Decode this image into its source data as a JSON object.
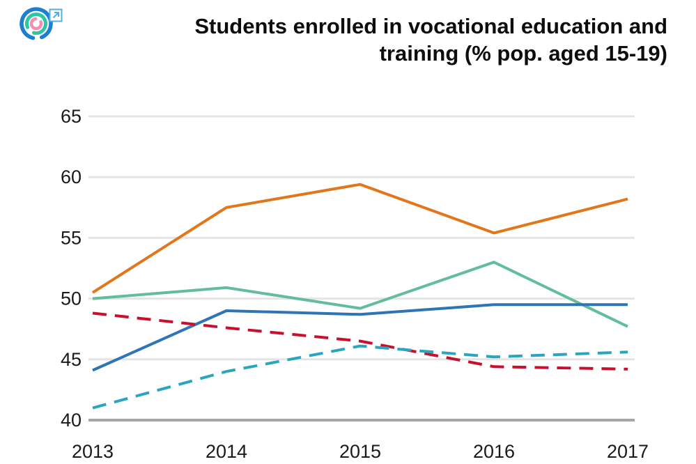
{
  "header": {
    "title_lines": [
      "Students enrolled in vocational education and",
      "training (% pop. aged 15-19)"
    ]
  },
  "chart_data": {
    "type": "line",
    "title": "Students enrolled in vocational education and training (% pop. aged 15-19)",
    "x": [
      2013,
      2014,
      2015,
      2016,
      2017
    ],
    "series": [
      {
        "name": "orange-solid",
        "color": "#E2761B",
        "style": "solid",
        "values": [
          50.5,
          57.5,
          59.4,
          55.4,
          58.2
        ]
      },
      {
        "name": "green-solid",
        "color": "#62BD9A",
        "style": "solid",
        "values": [
          50.0,
          50.9,
          49.2,
          53.0,
          47.7
        ]
      },
      {
        "name": "blue-solid",
        "color": "#2E75B6",
        "style": "solid",
        "values": [
          44.1,
          49.0,
          48.7,
          49.5,
          49.5
        ]
      },
      {
        "name": "red-dashed",
        "color": "#C8102E",
        "style": "dashed",
        "values": [
          48.8,
          47.6,
          46.5,
          44.4,
          44.2
        ]
      },
      {
        "name": "cyan-dashed",
        "color": "#2AA5C0",
        "style": "dashed",
        "values": [
          41.0,
          44.0,
          46.1,
          45.2,
          45.6
        ]
      }
    ],
    "ylim": [
      40,
      65
    ],
    "y_ticks": [
      40,
      45,
      50,
      55,
      60,
      65
    ],
    "x_ticks": [
      "2013",
      "2014",
      "2015",
      "2016",
      "2017"
    ],
    "grid": true,
    "legend": "none",
    "colors": {
      "gridline": "#E4E4E4",
      "baseline": "#A6A6A6",
      "tick_label": "#1A1A1A"
    }
  }
}
